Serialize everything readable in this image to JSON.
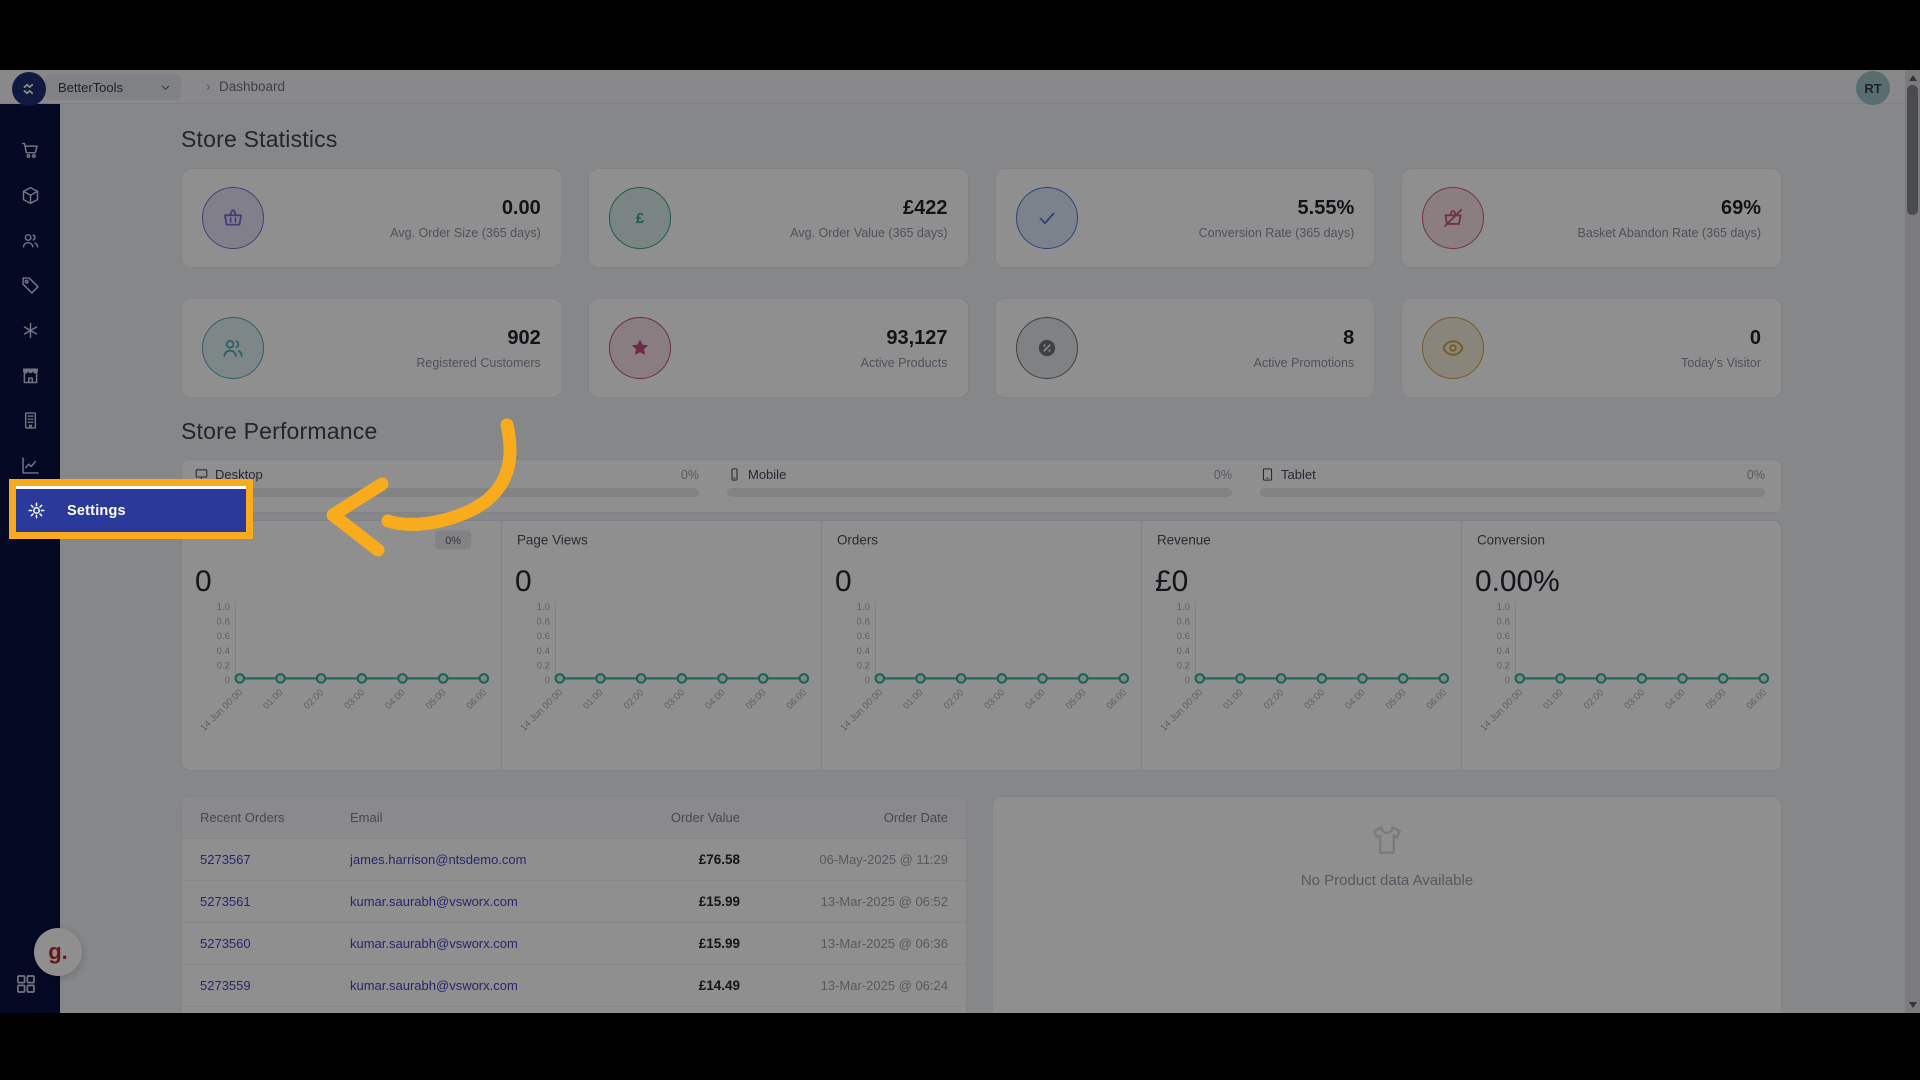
{
  "topbar": {
    "brand": "BetterTools",
    "breadcrumb_separator": "›",
    "breadcrumb": "Dashboard",
    "avatar_initials": "RT"
  },
  "sidebar": {
    "nav_icons": [
      "cart",
      "package",
      "users",
      "tag",
      "asterisk",
      "store",
      "building",
      "analytics"
    ],
    "footer_badge": "g."
  },
  "annotation": {
    "highlighted_item_label": "Settings",
    "highlight_border_color": "#F8AC1D",
    "highlight_bg_color": "#2B3A9A"
  },
  "store_statistics": {
    "title": "Store Statistics",
    "cards": [
      {
        "icon": "basket",
        "accent": "#7B6FCF",
        "value": "0.00",
        "label": "Avg. Order Size (365 days)"
      },
      {
        "icon": "pound",
        "accent": "#33A386",
        "value": "£422",
        "label": "Avg. Order Value (365 days)"
      },
      {
        "icon": "check",
        "accent": "#4A7ED6",
        "value": "5.55%",
        "label": "Conversion Rate (365 days)"
      },
      {
        "icon": "basket-off",
        "accent": "#D15B72",
        "value": "69%",
        "label": "Basket Abandon Rate (365 days)"
      },
      {
        "icon": "users",
        "accent": "#55AABB",
        "value": "902",
        "label": "Registered Customers"
      },
      {
        "icon": "star",
        "accent": "#C34B80",
        "value": "93,127",
        "label": "Active Products"
      },
      {
        "icon": "seal-percent",
        "accent": "#6E747E",
        "value": "8",
        "label": "Active Promotions"
      },
      {
        "icon": "eye",
        "accent": "#CFA13D",
        "value": "0",
        "label": "Today's Visitor"
      }
    ]
  },
  "store_performance": {
    "title": "Store Performance",
    "device_breakdown": [
      {
        "icon": "monitor",
        "label": "Desktop",
        "percent": "0%"
      },
      {
        "icon": "mobile",
        "label": "Mobile",
        "percent": "0%"
      },
      {
        "icon": "tablet",
        "label": "Tablet",
        "percent": "0%"
      }
    ]
  },
  "chart_data": [
    {
      "type": "line",
      "title": "",
      "badge": "0%",
      "headline_value": "0",
      "x": [
        "14 Jun 00:00",
        "01:00",
        "02:00",
        "03:00",
        "04:00",
        "05:00",
        "06:00"
      ],
      "values": [
        0,
        0,
        0,
        0,
        0,
        0,
        0
      ],
      "y_ticks": [
        "1.0",
        "0.8",
        "0.6",
        "0.4",
        "0.2",
        "0"
      ],
      "ylim": [
        0,
        1
      ],
      "line_color": "#3DBCA2"
    },
    {
      "type": "line",
      "title": "Page Views",
      "badge": null,
      "headline_value": "0",
      "x": [
        "14 Jun 00:00",
        "01:00",
        "02:00",
        "03:00",
        "04:00",
        "05:00",
        "06:00"
      ],
      "values": [
        0,
        0,
        0,
        0,
        0,
        0,
        0
      ],
      "y_ticks": [
        "1.0",
        "0.8",
        "0.6",
        "0.4",
        "0.2",
        "0"
      ],
      "ylim": [
        0,
        1
      ],
      "line_color": "#3DBCA2"
    },
    {
      "type": "line",
      "title": "Orders",
      "badge": null,
      "headline_value": "0",
      "x": [
        "14 Jun 00:00",
        "01:00",
        "02:00",
        "03:00",
        "04:00",
        "05:00",
        "06:00"
      ],
      "values": [
        0,
        0,
        0,
        0,
        0,
        0,
        0
      ],
      "y_ticks": [
        "1.0",
        "0.8",
        "0.6",
        "0.4",
        "0.2",
        "0"
      ],
      "ylim": [
        0,
        1
      ],
      "line_color": "#3DBCA2"
    },
    {
      "type": "line",
      "title": "Revenue",
      "badge": null,
      "headline_value": "£0",
      "x": [
        "14 Jun 00:00",
        "01:00",
        "02:00",
        "03:00",
        "04:00",
        "05:00",
        "06:00"
      ],
      "values": [
        0,
        0,
        0,
        0,
        0,
        0,
        0
      ],
      "y_ticks": [
        "1.0",
        "0.8",
        "0.6",
        "0.4",
        "0.2",
        "0"
      ],
      "ylim": [
        0,
        1
      ],
      "line_color": "#3DBCA2"
    },
    {
      "type": "line",
      "title": "Conversion",
      "badge": null,
      "headline_value": "0.00%",
      "x": [
        "14 Jun 00:00",
        "01:00",
        "02:00",
        "03:00",
        "04:00",
        "05:00",
        "06:00"
      ],
      "values": [
        0,
        0,
        0,
        0,
        0,
        0,
        0
      ],
      "y_ticks": [
        "1.0",
        "0.8",
        "0.6",
        "0.4",
        "0.2",
        "0"
      ],
      "ylim": [
        0,
        1
      ],
      "line_color": "#3DBCA2"
    }
  ],
  "orders_table": {
    "headers": [
      "Recent Orders",
      "Email",
      "Order Value",
      "Order Date"
    ],
    "rows": [
      {
        "id": "5273567",
        "email": "james.harrison@ntsdemo.com",
        "value": "£76.58",
        "date": "06-May-2025 @ 11:29"
      },
      {
        "id": "5273561",
        "email": "kumar.saurabh@vsworx.com",
        "value": "£15.99",
        "date": "13-Mar-2025 @ 06:52"
      },
      {
        "id": "5273560",
        "email": "kumar.saurabh@vsworx.com",
        "value": "£15.99",
        "date": "13-Mar-2025 @ 06:36"
      },
      {
        "id": "5273559",
        "email": "kumar.saurabh@vsworx.com",
        "value": "£14.49",
        "date": "13-Mar-2025 @ 06:24"
      }
    ]
  },
  "product_panel": {
    "message": "No Product data Available"
  }
}
